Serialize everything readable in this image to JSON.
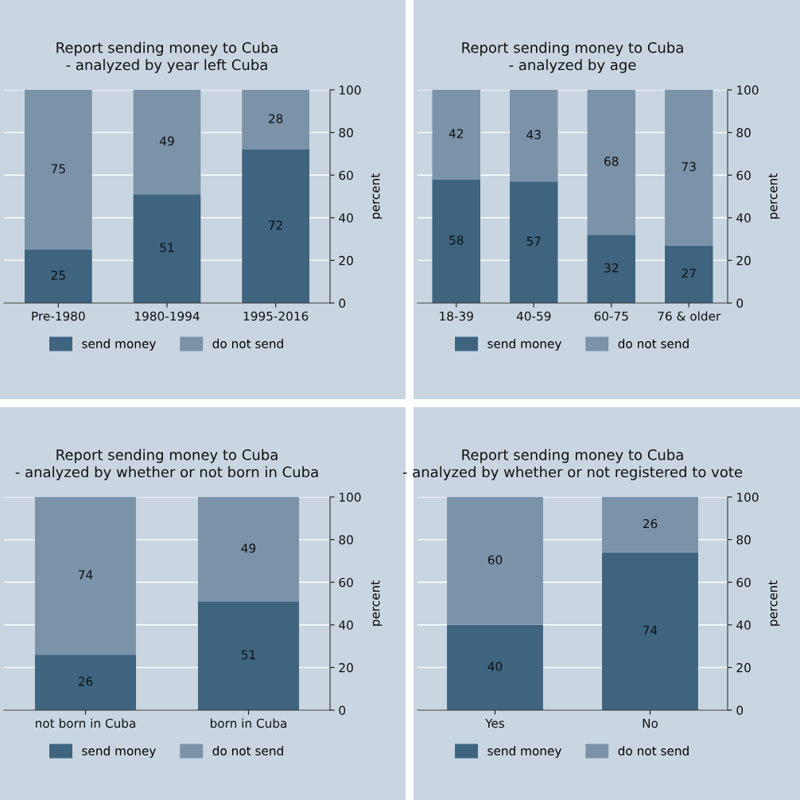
{
  "chart_data": [
    {
      "type": "bar",
      "title": "Report sending money to Cuba",
      "subtitle": "- analyzed by year left Cuba",
      "ylabel": "percent",
      "categories": [
        "Pre-1980",
        "1980-1994",
        "1995-2016"
      ],
      "stacked": true,
      "data_labels": true,
      "ylim": [
        0,
        100
      ],
      "yticks": [
        0,
        20,
        40,
        60,
        80,
        100
      ],
      "grid": "y",
      "legend": "bottom",
      "series": [
        {
          "name": "send money",
          "color": "#3e6480",
          "values": [
            25,
            51,
            72
          ]
        },
        {
          "name": "do not send",
          "color": "#7b93a9",
          "values": [
            75,
            49,
            28
          ]
        }
      ]
    },
    {
      "type": "bar",
      "title": "Report sending money to Cuba",
      "subtitle": "- analyzed by age",
      "ylabel": "percent",
      "categories": [
        "18-39",
        "40-59",
        "60-75",
        "76 & older"
      ],
      "stacked": true,
      "data_labels": true,
      "ylim": [
        0,
        100
      ],
      "yticks": [
        0,
        20,
        40,
        60,
        80,
        100
      ],
      "grid": "y",
      "legend": "bottom",
      "series": [
        {
          "name": "send money",
          "color": "#3e6480",
          "values": [
            58,
            57,
            32,
            27
          ]
        },
        {
          "name": "do not send",
          "color": "#7b93a9",
          "values": [
            42,
            43,
            68,
            73
          ]
        }
      ]
    },
    {
      "type": "bar",
      "title": "Report sending money to Cuba",
      "subtitle": "- analyzed by whether or not born in Cuba",
      "ylabel": "percent",
      "categories": [
        "not born in Cuba",
        "born in Cuba"
      ],
      "stacked": true,
      "data_labels": true,
      "ylim": [
        0,
        100
      ],
      "yticks": [
        0,
        20,
        40,
        60,
        80,
        100
      ],
      "grid": "y",
      "legend": "bottom",
      "series": [
        {
          "name": "send money",
          "color": "#3e6480",
          "values": [
            26,
            51
          ]
        },
        {
          "name": "do not send",
          "color": "#7b93a9",
          "values": [
            74,
            49
          ]
        }
      ]
    },
    {
      "type": "bar",
      "title": "Report sending money to Cuba",
      "subtitle": "- analyzed by whether or not registered to vote",
      "ylabel": "percent",
      "categories": [
        "Yes",
        "No"
      ],
      "stacked": true,
      "data_labels": true,
      "ylim": [
        0,
        100
      ],
      "yticks": [
        0,
        20,
        40,
        60,
        80,
        100
      ],
      "grid": "y",
      "legend": "bottom",
      "series": [
        {
          "name": "send money",
          "color": "#3e6480",
          "values": [
            40,
            74
          ]
        },
        {
          "name": "do not send",
          "color": "#7b93a9",
          "values": [
            60,
            26
          ]
        }
      ]
    }
  ]
}
